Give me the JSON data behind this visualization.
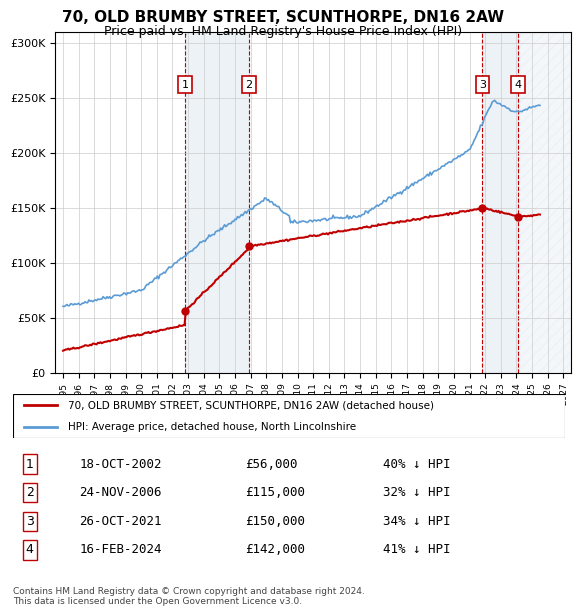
{
  "title": "70, OLD BRUMBY STREET, SCUNTHORPE, DN16 2AW",
  "subtitle": "Price paid vs. HM Land Registry's House Price Index (HPI)",
  "legend_line1": "70, OLD BRUMBY STREET, SCUNTHORPE, DN16 2AW (detached house)",
  "legend_line2": "HPI: Average price, detached house, North Lincolnshire",
  "footer": "Contains HM Land Registry data © Crown copyright and database right 2024.\nThis data is licensed under the Open Government Licence v3.0.",
  "table": [
    [
      "1",
      "18-OCT-2002",
      "£56,000",
      "40% ↓ HPI"
    ],
    [
      "2",
      "24-NOV-2006",
      "£115,000",
      "32% ↓ HPI"
    ],
    [
      "3",
      "26-OCT-2021",
      "£150,000",
      "34% ↓ HPI"
    ],
    [
      "4",
      "16-FEB-2024",
      "£142,000",
      "41% ↓ HPI"
    ]
  ],
  "sale_dates": [
    2002.8,
    2006.9,
    2021.82,
    2024.12
  ],
  "sale_prices": [
    56000,
    115000,
    150000,
    142000
  ],
  "sale_labels": [
    "1",
    "2",
    "3",
    "4"
  ],
  "hpi_color": "#5b9bd5",
  "price_color": "#c00000",
  "shade_color": "#dce6f1",
  "ylim": [
    0,
    310000
  ],
  "yticks": [
    0,
    50000,
    100000,
    150000,
    200000,
    250000,
    300000
  ],
  "xlim": [
    1994.5,
    2027.5
  ],
  "xticks": [
    1995,
    1996,
    1997,
    1998,
    1999,
    2000,
    2001,
    2002,
    2003,
    2004,
    2005,
    2006,
    2007,
    2008,
    2009,
    2010,
    2011,
    2012,
    2013,
    2014,
    2015,
    2016,
    2017,
    2018,
    2019,
    2020,
    2021,
    2022,
    2023,
    2024,
    2025,
    2026,
    2027
  ]
}
